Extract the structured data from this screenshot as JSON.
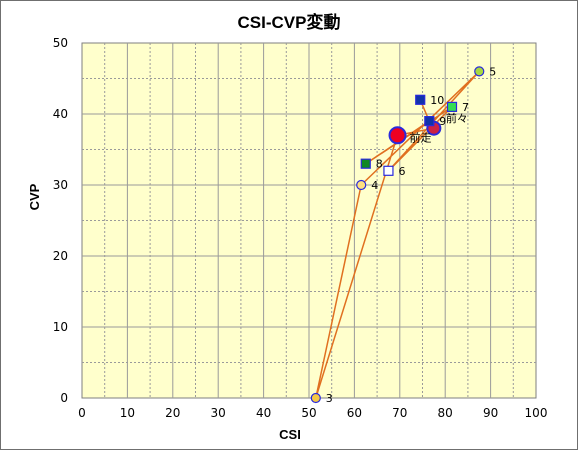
{
  "chart_data": {
    "type": "scatter",
    "title": "CSI-CVP変動",
    "xlabel": "CSI",
    "ylabel": "CVP",
    "xlim": [
      0,
      100
    ],
    "ylim": [
      0,
      50
    ],
    "xticks": [
      "0",
      "10",
      "20",
      "30",
      "40",
      "50",
      "60",
      "70",
      "80",
      "90",
      "100"
    ],
    "yticks": [
      "0",
      "10",
      "20",
      "30",
      "40",
      "50"
    ],
    "grid": true,
    "line_color": "#e07020",
    "plot_background": "#ffffcc",
    "points": [
      {
        "label": "前々",
        "x": 77.5,
        "y": 38,
        "marker": "circle",
        "fill": "#cc2244",
        "stroke": "#2a2adc",
        "size": "medium"
      },
      {
        "label": "前走",
        "x": 69.5,
        "y": 37,
        "marker": "circle",
        "fill": "#ee0022",
        "stroke": "#2a2adc",
        "size": "large"
      },
      {
        "label": "3",
        "x": 51.5,
        "y": 0,
        "marker": "circle",
        "fill": "#f5c842",
        "stroke": "#2a2adc",
        "size": "small"
      },
      {
        "label": "4",
        "x": 61.5,
        "y": 30,
        "marker": "circle",
        "fill": "#ffe080",
        "stroke": "#2a2adc",
        "size": "small"
      },
      {
        "label": "5",
        "x": 87.5,
        "y": 46,
        "marker": "circle",
        "fill": "#a8d840",
        "stroke": "#2a2adc",
        "size": "small"
      },
      {
        "label": "6",
        "x": 67.5,
        "y": 32,
        "marker": "square",
        "fill": "#ffffff",
        "stroke": "#2a2adc",
        "size": "small"
      },
      {
        "label": "7",
        "x": 81.5,
        "y": 41,
        "marker": "square",
        "fill": "#33dd55",
        "stroke": "#2a2adc",
        "size": "small"
      },
      {
        "label": "8",
        "x": 62.5,
        "y": 33,
        "marker": "square",
        "fill": "#118822",
        "stroke": "#2a2adc",
        "size": "small"
      },
      {
        "label": "9",
        "x": 76.5,
        "y": 39,
        "marker": "square",
        "fill": "#1133aa",
        "stroke": "#2a2adc",
        "size": "small"
      },
      {
        "label": "10",
        "x": 74.5,
        "y": 42,
        "marker": "square",
        "fill": "#1133aa",
        "stroke": "#2a2adc",
        "size": "small"
      }
    ]
  }
}
